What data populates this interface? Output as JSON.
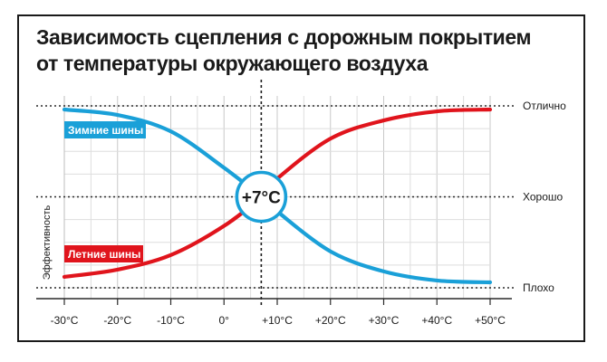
{
  "chart_data": {
    "type": "line",
    "title_lines": [
      "Зависимость сцепления с дорожным покрытием",
      "от температуры окружающего воздуха"
    ],
    "ylabel": "Эффективность",
    "x_ticks": [
      "-30°C",
      "-20°C",
      "-10°C",
      "0°",
      "+10°C",
      "+20°C",
      "+30°C",
      "+40°C",
      "+50°C"
    ],
    "x_values": [
      -30,
      -20,
      -10,
      0,
      10,
      20,
      30,
      40,
      50
    ],
    "xlim": [
      -30,
      50
    ],
    "ylim": [
      0,
      1
    ],
    "levels": [
      {
        "label": "Отлично",
        "value": 1.0
      },
      {
        "label": "Хорошо",
        "value": 0.5
      },
      {
        "label": "Плохо",
        "value": 0.0
      }
    ],
    "crossover": {
      "x": 7,
      "y": 0.5,
      "label": "+7°C"
    },
    "grid": true,
    "series": [
      {
        "name": "Зимние шины",
        "color": "#1aa0d8",
        "x": [
          -30,
          -20,
          -10,
          0,
          7,
          10,
          20,
          30,
          40,
          50
        ],
        "y": [
          0.98,
          0.95,
          0.86,
          0.66,
          0.5,
          0.42,
          0.2,
          0.09,
          0.04,
          0.03
        ]
      },
      {
        "name": "Летние шины",
        "color": "#e0141c",
        "x": [
          -30,
          -20,
          -10,
          0,
          7,
          10,
          20,
          30,
          40,
          50
        ],
        "y": [
          0.06,
          0.1,
          0.18,
          0.34,
          0.5,
          0.6,
          0.82,
          0.92,
          0.97,
          0.98
        ]
      }
    ]
  }
}
